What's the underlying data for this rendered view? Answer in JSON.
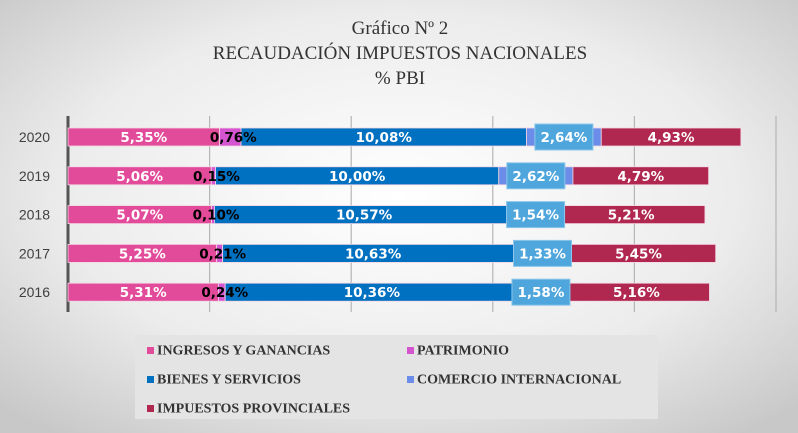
{
  "chart_data": {
    "type": "bar",
    "orientation": "horizontal",
    "stacked": true,
    "title": [
      "Gráfico  Nº 2",
      "RECAUDACIÓN IMPUESTOS NACIONALES",
      "%  PBI"
    ],
    "categories": [
      "2020",
      "2019",
      "2018",
      "2017",
      "2016"
    ],
    "xlim": [
      0,
      25
    ],
    "grid": true,
    "legend_position": "bottom",
    "series": [
      {
        "name": "INGRESOS Y GANANCIAS",
        "color": "#e24a9a",
        "values": [
          5.35,
          5.06,
          5.07,
          5.25,
          5.31
        ],
        "labels": [
          "5,35%",
          "5,06%",
          "5,07%",
          "5,25%",
          "5,31%"
        ]
      },
      {
        "name": "PATRIMONIO",
        "color": "#d455cf",
        "values": [
          0.76,
          0.15,
          0.1,
          0.21,
          0.24
        ],
        "labels": [
          "0,76%",
          "0,15%",
          "0,10%",
          "0,21%",
          "0,24%"
        ]
      },
      {
        "name": "BIENES Y SERVICIOS",
        "color": "#0070c0",
        "values": [
          10.08,
          10.0,
          10.57,
          10.63,
          10.36
        ],
        "labels": [
          "10,08%",
          "10,00%",
          "10,57%",
          "10,63%",
          "10,36%"
        ]
      },
      {
        "name": "COMERCIO INTERNACIONAL",
        "color": "#6b8ce8",
        "values": [
          2.64,
          2.62,
          1.54,
          1.33,
          1.58
        ],
        "labels": [
          "2,64%",
          "2,62%",
          "1,54%",
          "1,33%",
          "1,58%"
        ]
      },
      {
        "name": "IMPUESTOS PROVINCIALES",
        "color": "#b0274f",
        "values": [
          4.93,
          4.79,
          5.21,
          5.45,
          5.16
        ],
        "labels": [
          "4,93%",
          "4,79%",
          "5,21%",
          "5,45%",
          "5,16%"
        ]
      }
    ]
  }
}
